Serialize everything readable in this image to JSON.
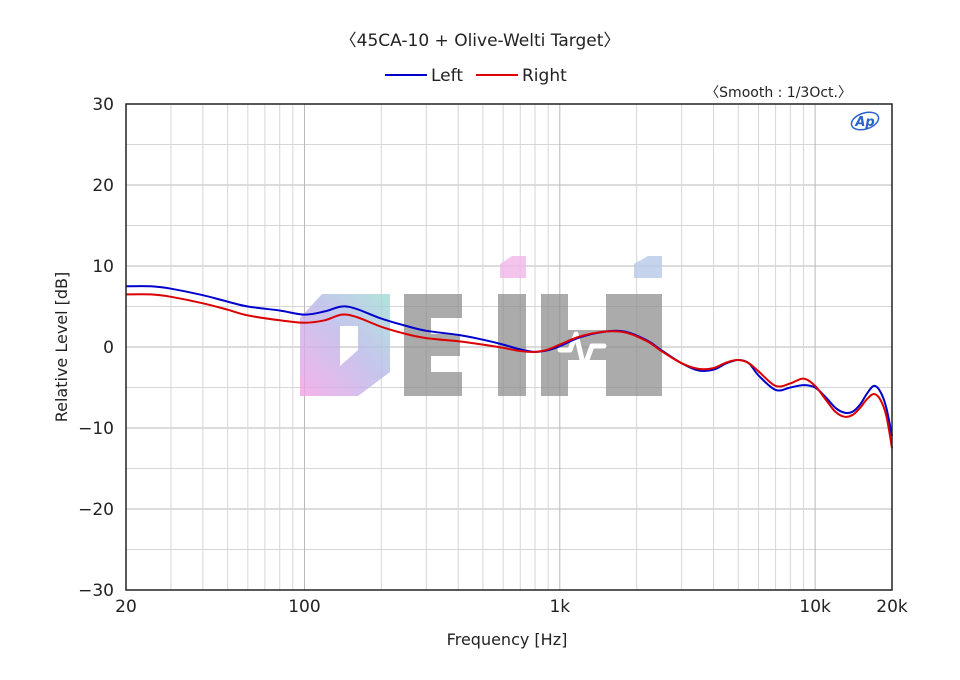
{
  "chart_data": {
    "type": "line",
    "title": "〈45CA-10 + Olive-Welti Target〉",
    "annotation": "〈Smooth : 1/3Oct.〉",
    "logo_text": "Ap",
    "watermark_text": "EIHI",
    "xlabel": "Frequency [Hz]",
    "ylabel": "Relative Level [dB]",
    "x_scale": "log",
    "xlim": [
      20,
      20000
    ],
    "ylim": [
      -30,
      30
    ],
    "x_ticks": [
      {
        "value": 20,
        "label": "20"
      },
      {
        "value": 100,
        "label": "100"
      },
      {
        "value": 1000,
        "label": "1k"
      },
      {
        "value": 10000,
        "label": "10k"
      },
      {
        "value": 20000,
        "label": "20k"
      }
    ],
    "y_ticks": [
      {
        "value": 30,
        "label": "30"
      },
      {
        "value": 20,
        "label": "20"
      },
      {
        "value": 10,
        "label": "10"
      },
      {
        "value": 0,
        "label": "0"
      },
      {
        "value": -10,
        "label": "−10"
      },
      {
        "value": -20,
        "label": "−20"
      },
      {
        "value": -30,
        "label": "−30"
      }
    ],
    "grid": true,
    "legend_position": "top-center",
    "series": [
      {
        "name": "Left",
        "color": "#0000cc",
        "points": [
          [
            20,
            7.5
          ],
          [
            25,
            7.5
          ],
          [
            30,
            7.2
          ],
          [
            40,
            6.4
          ],
          [
            50,
            5.6
          ],
          [
            60,
            5.0
          ],
          [
            80,
            4.5
          ],
          [
            100,
            4.0
          ],
          [
            120,
            4.4
          ],
          [
            140,
            5.0
          ],
          [
            160,
            4.7
          ],
          [
            200,
            3.5
          ],
          [
            250,
            2.6
          ],
          [
            300,
            2.0
          ],
          [
            400,
            1.5
          ],
          [
            500,
            0.9
          ],
          [
            600,
            0.3
          ],
          [
            700,
            -0.3
          ],
          [
            800,
            -0.6
          ],
          [
            900,
            -0.4
          ],
          [
            1000,
            0.1
          ],
          [
            1200,
            1.2
          ],
          [
            1500,
            1.9
          ],
          [
            1800,
            1.9
          ],
          [
            2200,
            0.8
          ],
          [
            2500,
            -0.4
          ],
          [
            3000,
            -2.0
          ],
          [
            3500,
            -2.9
          ],
          [
            4000,
            -2.8
          ],
          [
            4500,
            -2.0
          ],
          [
            5000,
            -1.6
          ],
          [
            5500,
            -2.0
          ],
          [
            6000,
            -3.5
          ],
          [
            7000,
            -5.3
          ],
          [
            8000,
            -5.0
          ],
          [
            9000,
            -4.7
          ],
          [
            10000,
            -5.0
          ],
          [
            11000,
            -6.2
          ],
          [
            12000,
            -7.5
          ],
          [
            13000,
            -8.1
          ],
          [
            14000,
            -8.0
          ],
          [
            15000,
            -7.1
          ],
          [
            16000,
            -5.7
          ],
          [
            17000,
            -4.8
          ],
          [
            18000,
            -5.5
          ],
          [
            19000,
            -7.5
          ],
          [
            20000,
            -11.0
          ]
        ]
      },
      {
        "name": "Right",
        "color": "#dd0000",
        "points": [
          [
            20,
            6.5
          ],
          [
            25,
            6.5
          ],
          [
            30,
            6.2
          ],
          [
            40,
            5.4
          ],
          [
            50,
            4.6
          ],
          [
            60,
            3.9
          ],
          [
            80,
            3.3
          ],
          [
            100,
            3.0
          ],
          [
            120,
            3.3
          ],
          [
            140,
            4.0
          ],
          [
            160,
            3.7
          ],
          [
            200,
            2.5
          ],
          [
            250,
            1.6
          ],
          [
            300,
            1.1
          ],
          [
            400,
            0.7
          ],
          [
            500,
            0.3
          ],
          [
            600,
            -0.1
          ],
          [
            700,
            -0.5
          ],
          [
            800,
            -0.6
          ],
          [
            900,
            -0.3
          ],
          [
            1000,
            0.3
          ],
          [
            1200,
            1.3
          ],
          [
            1500,
            1.9
          ],
          [
            1800,
            1.8
          ],
          [
            2200,
            0.7
          ],
          [
            2500,
            -0.5
          ],
          [
            3000,
            -2.0
          ],
          [
            3500,
            -2.7
          ],
          [
            4000,
            -2.6
          ],
          [
            4500,
            -1.9
          ],
          [
            5000,
            -1.6
          ],
          [
            5500,
            -2.0
          ],
          [
            6000,
            -3.0
          ],
          [
            7000,
            -4.8
          ],
          [
            8000,
            -4.5
          ],
          [
            9000,
            -3.9
          ],
          [
            10000,
            -4.8
          ],
          [
            11000,
            -6.5
          ],
          [
            12000,
            -8.0
          ],
          [
            13000,
            -8.6
          ],
          [
            14000,
            -8.4
          ],
          [
            15000,
            -7.5
          ],
          [
            16000,
            -6.4
          ],
          [
            17000,
            -5.8
          ],
          [
            18000,
            -6.5
          ],
          [
            19000,
            -8.5
          ],
          [
            20000,
            -12.5
          ]
        ]
      }
    ]
  }
}
